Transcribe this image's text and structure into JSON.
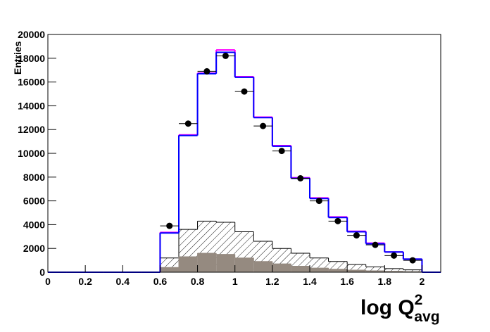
{
  "chart_data": {
    "type": "histogram",
    "ylabel": "Entries",
    "xlabel": {
      "base": "log Q",
      "sup": "2",
      "sub": "avg"
    },
    "bins": [
      0,
      0.1,
      0.2,
      0.3,
      0.4,
      0.5,
      0.6,
      0.7,
      0.8,
      0.9,
      1.0,
      1.1,
      1.2,
      1.3,
      1.4,
      1.5,
      1.6,
      1.7,
      1.8,
      1.9,
      2.0,
      2.1
    ],
    "xlim": [
      0,
      2.1
    ],
    "xticks": [
      0,
      0.2,
      0.4,
      0.6,
      0.8,
      1,
      1.2,
      1.4,
      1.6,
      1.8,
      2
    ],
    "ylim": [
      0,
      20000
    ],
    "yticks": [
      0,
      2000,
      4000,
      6000,
      8000,
      10000,
      12000,
      14000,
      16000,
      18000,
      20000
    ],
    "series": [
      {
        "style": "hatched",
        "color": "#000000",
        "values": [
          0,
          0,
          0,
          0,
          0,
          0,
          1200,
          3600,
          4300,
          4200,
          3400,
          2600,
          2000,
          1600,
          1200,
          900,
          650,
          450,
          300,
          200,
          0
        ]
      },
      {
        "style": "filled",
        "color": "#958a80",
        "values": [
          0,
          0,
          0,
          0,
          0,
          0,
          400,
          1300,
          1600,
          1500,
          1200,
          900,
          700,
          500,
          350,
          250,
          180,
          120,
          80,
          50,
          0
        ]
      },
      {
        "style": "line",
        "color": "#ff00ff",
        "values": [
          0,
          0,
          0,
          0,
          0,
          0,
          3350,
          11550,
          16750,
          18700,
          16450,
          13050,
          10650,
          7950,
          6250,
          4650,
          3450,
          2450,
          1700,
          1100,
          0
        ]
      },
      {
        "style": "line",
        "color": "#0000ff",
        "values": [
          0,
          0,
          0,
          0,
          0,
          0,
          3300,
          11500,
          16700,
          18500,
          16400,
          13000,
          10600,
          7900,
          6200,
          4600,
          3400,
          2400,
          1700,
          1100,
          0
        ]
      }
    ],
    "points": {
      "color": "#000000",
      "x": [
        0.65,
        0.75,
        0.85,
        0.95,
        1.05,
        1.15,
        1.25,
        1.35,
        1.45,
        1.55,
        1.65,
        1.75,
        1.85,
        1.95
      ],
      "values": [
        3900,
        12500,
        16900,
        18200,
        15200,
        12300,
        10200,
        7900,
        6000,
        4300,
        3100,
        2300,
        1400,
        1000
      ]
    }
  }
}
